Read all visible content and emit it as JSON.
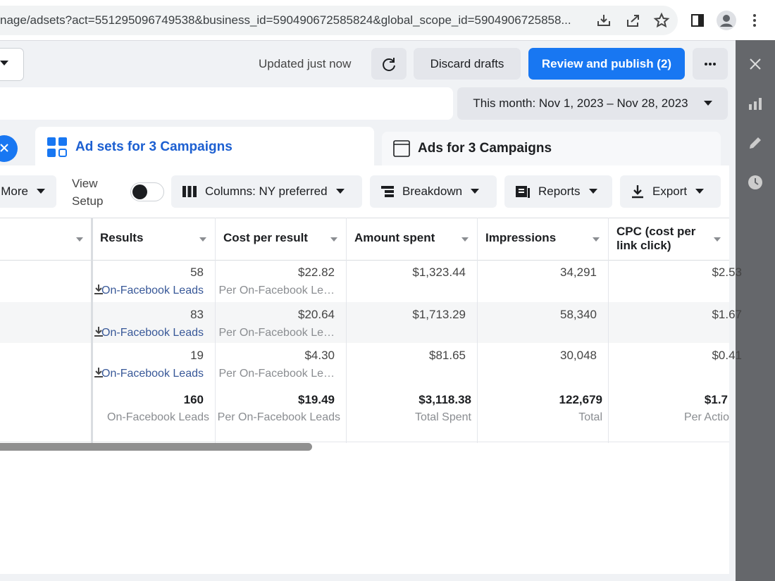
{
  "browser": {
    "url": "nage/adsets?act=551295096749538&business_id=590490672585824&global_scope_id=5904906725858..."
  },
  "toolbar": {
    "status": "Updated just now",
    "discard": "Discard drafts",
    "publish": "Review and publish (2)"
  },
  "date_range": "This month: Nov 1, 2023 – Nov 28, 2023",
  "tabs": [
    "Ad sets for 3 Campaigns",
    "Ads for 3 Campaigns"
  ],
  "actions": {
    "more": "More",
    "view_setup": "View Setup",
    "columns": "Columns: NY preferred",
    "breakdown": "Breakdown",
    "reports": "Reports",
    "export": "Export"
  },
  "table": {
    "headers": [
      "Results",
      "Cost per result",
      "Amount spent",
      "Impressions",
      "CPC (cost per link click)"
    ],
    "rows": [
      {
        "results": "58",
        "result_type": "On-Facebook Leads",
        "cost_per_result": "$22.82",
        "cost_label": "Per On-Facebook Le…",
        "amount_spent": "$1,323.44",
        "impressions": "34,291",
        "cpc": "$2.53"
      },
      {
        "results": "83",
        "result_type": "On-Facebook Leads",
        "cost_per_result": "$20.64",
        "cost_label": "Per On-Facebook Le…",
        "amount_spent": "$1,713.29",
        "impressions": "58,340",
        "cpc": "$1.67"
      },
      {
        "results": "19",
        "result_type": "On-Facebook Leads",
        "cost_per_result": "$4.30",
        "cost_label": "Per On-Facebook Le…",
        "amount_spent": "$81.65",
        "impressions": "30,048",
        "cpc": "$0.41"
      }
    ],
    "totals": {
      "results": "160",
      "results_label": "On-Facebook Leads",
      "cost_per_result": "$19.49",
      "cost_label": "Per On-Facebook Leads",
      "amount_spent": "$3,118.38",
      "amount_label": "Total Spent",
      "impressions": "122,679",
      "impressions_label": "Total",
      "cpc": "$1.7",
      "cpc_label": "Per Actio"
    }
  }
}
